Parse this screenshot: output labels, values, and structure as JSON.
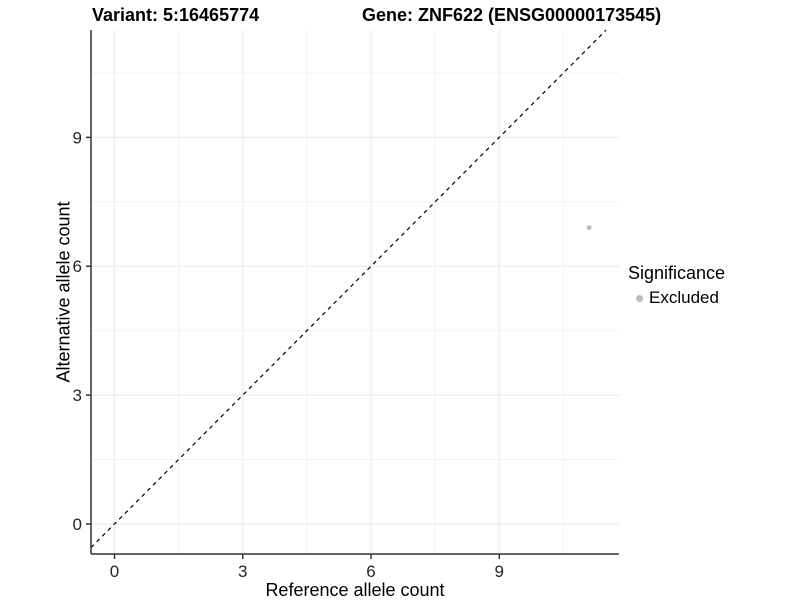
{
  "titles": {
    "variant": "Variant: 5:16465774",
    "gene": "Gene: ZNF622 (ENSG00000173545)"
  },
  "chart_data": {
    "type": "scatter",
    "xlabel": "Reference allele count",
    "ylabel": "Alternative allele count",
    "x_ticks": [
      0,
      3,
      6,
      9
    ],
    "y_ticks": [
      0,
      3,
      6,
      9
    ],
    "x_minor": [
      1.5,
      4.5,
      7.5,
      10.5
    ],
    "y_minor": [
      1.5,
      4.5,
      7.5,
      10.5
    ],
    "x_range": [
      -0.55,
      11.8
    ],
    "y_range": [
      -0.7,
      11.5
    ],
    "grid": true,
    "legend_position": "right",
    "reference_line": {
      "type": "identity",
      "equation": "y = x",
      "style": "dashed"
    },
    "points": [
      {
        "x": 11.1,
        "y": 6.9,
        "significance": "Excluded"
      }
    ],
    "legend": {
      "title": "Significance",
      "items": [
        {
          "label": "Excluded",
          "color": "#bdbdbd"
        }
      ]
    }
  },
  "colors": {
    "background": "#ffffff",
    "grid_major": "#e9e9e9",
    "grid_minor": "#f2f2f2",
    "axis_line": "#333333",
    "tick": "#333333",
    "title_text": "#000000",
    "axis_text": "#262626",
    "point": "#bdbdbd",
    "reference_line": "#000000"
  }
}
